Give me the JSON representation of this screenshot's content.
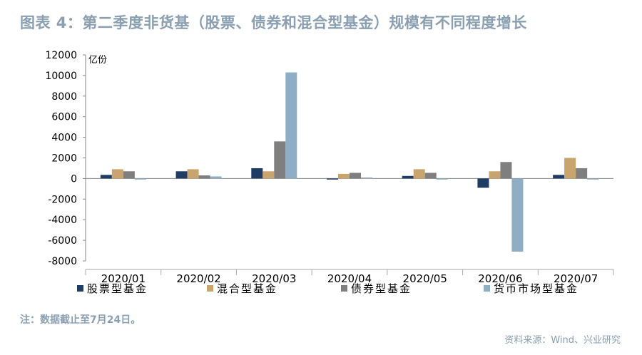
{
  "title": "图表 4：第二季度非货基（股票、债券和混合型基金）规模有不同程度增长",
  "note": "注：数据截止至7月24日。",
  "source": "资料来源：Wind、兴业研究",
  "chart_data": {
    "type": "bar",
    "title": "图表 4：第二季度非货基（股票、债券和混合型基金）规模有不同程度增长",
    "ylabel": "亿份",
    "xlabel": "",
    "ylim": [
      -8000,
      12000
    ],
    "yticks": [
      12000,
      10000,
      8000,
      6000,
      4000,
      2000,
      0,
      -2000,
      -4000,
      -6000,
      -8000
    ],
    "grid": false,
    "legend": "bottom",
    "categories": [
      "2020/01",
      "2020/02",
      "2020/03",
      "2020/04",
      "2020/05",
      "2020/06",
      "2020/07"
    ],
    "series": [
      {
        "name": "股票型基金",
        "color": "#1f3c64",
        "values": [
          350,
          700,
          1000,
          -100,
          250,
          -900,
          350
        ]
      },
      {
        "name": "混合型基金",
        "color": "#c9a46e",
        "values": [
          900,
          900,
          700,
          450,
          900,
          700,
          2000
        ]
      },
      {
        "name": "债券型基金",
        "color": "#7f7f7f",
        "values": [
          700,
          300,
          3600,
          550,
          550,
          1600,
          1000
        ]
      },
      {
        "name": "货币市场型基金",
        "color": "#8eaec6",
        "values": [
          -100,
          200,
          10300,
          100,
          -100,
          -7100,
          -100
        ]
      }
    ]
  }
}
